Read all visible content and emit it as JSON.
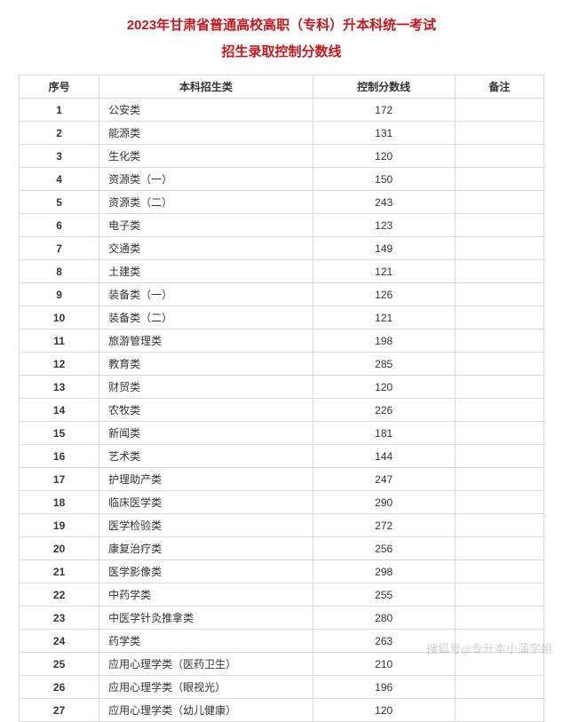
{
  "title": {
    "line1": "2023年甘肃省普通高校高职（专科）升本科统一考试",
    "line2": "招生录取控制分数线"
  },
  "columns": [
    "序号",
    "本科招生类",
    "控制分数线",
    "备注"
  ],
  "rows": [
    {
      "idx": "1",
      "category": "公安类",
      "score": "172",
      "note": ""
    },
    {
      "idx": "2",
      "category": "能源类",
      "score": "131",
      "note": ""
    },
    {
      "idx": "3",
      "category": "生化类",
      "score": "120",
      "note": ""
    },
    {
      "idx": "4",
      "category": "资源类（一）",
      "score": "150",
      "note": ""
    },
    {
      "idx": "5",
      "category": "资源类（二）",
      "score": "243",
      "note": ""
    },
    {
      "idx": "6",
      "category": "电子类",
      "score": "123",
      "note": ""
    },
    {
      "idx": "7",
      "category": "交通类",
      "score": "149",
      "note": ""
    },
    {
      "idx": "8",
      "category": "土建类",
      "score": "121",
      "note": ""
    },
    {
      "idx": "9",
      "category": "装备类（一）",
      "score": "126",
      "note": ""
    },
    {
      "idx": "10",
      "category": "装备类（二）",
      "score": "121",
      "note": ""
    },
    {
      "idx": "11",
      "category": "旅游管理类",
      "score": "198",
      "note": ""
    },
    {
      "idx": "12",
      "category": "教育类",
      "score": "285",
      "note": ""
    },
    {
      "idx": "13",
      "category": "财贸类",
      "score": "120",
      "note": ""
    },
    {
      "idx": "14",
      "category": "农牧类",
      "score": "226",
      "note": ""
    },
    {
      "idx": "15",
      "category": "新闻类",
      "score": "181",
      "note": ""
    },
    {
      "idx": "16",
      "category": "艺术类",
      "score": "144",
      "note": ""
    },
    {
      "idx": "17",
      "category": "护理助产类",
      "score": "247",
      "note": ""
    },
    {
      "idx": "18",
      "category": "临床医学类",
      "score": "290",
      "note": ""
    },
    {
      "idx": "19",
      "category": "医学检验类",
      "score": "272",
      "note": ""
    },
    {
      "idx": "20",
      "category": "康复治疗类",
      "score": "256",
      "note": ""
    },
    {
      "idx": "21",
      "category": "医学影像类",
      "score": "298",
      "note": ""
    },
    {
      "idx": "22",
      "category": "中药学类",
      "score": "255",
      "note": ""
    },
    {
      "idx": "23",
      "category": "中医学针灸推拿类",
      "score": "280",
      "note": ""
    },
    {
      "idx": "24",
      "category": "药学类",
      "score": "263",
      "note": ""
    },
    {
      "idx": "25",
      "category": "应用心理学类（医药卫生）",
      "score": "210",
      "note": ""
    },
    {
      "idx": "26",
      "category": "应用心理学类（眼视光）",
      "score": "196",
      "note": ""
    },
    {
      "idx": "27",
      "category": "应用心理学类（幼儿健康）",
      "score": "120",
      "note": ""
    }
  ],
  "watermark": "搜狐号@专升本小蒲学姐",
  "style": {
    "title_color": "#c8161d",
    "border_color": "#d9d9d9",
    "text_color": "#333333",
    "background": "#ffffff"
  }
}
